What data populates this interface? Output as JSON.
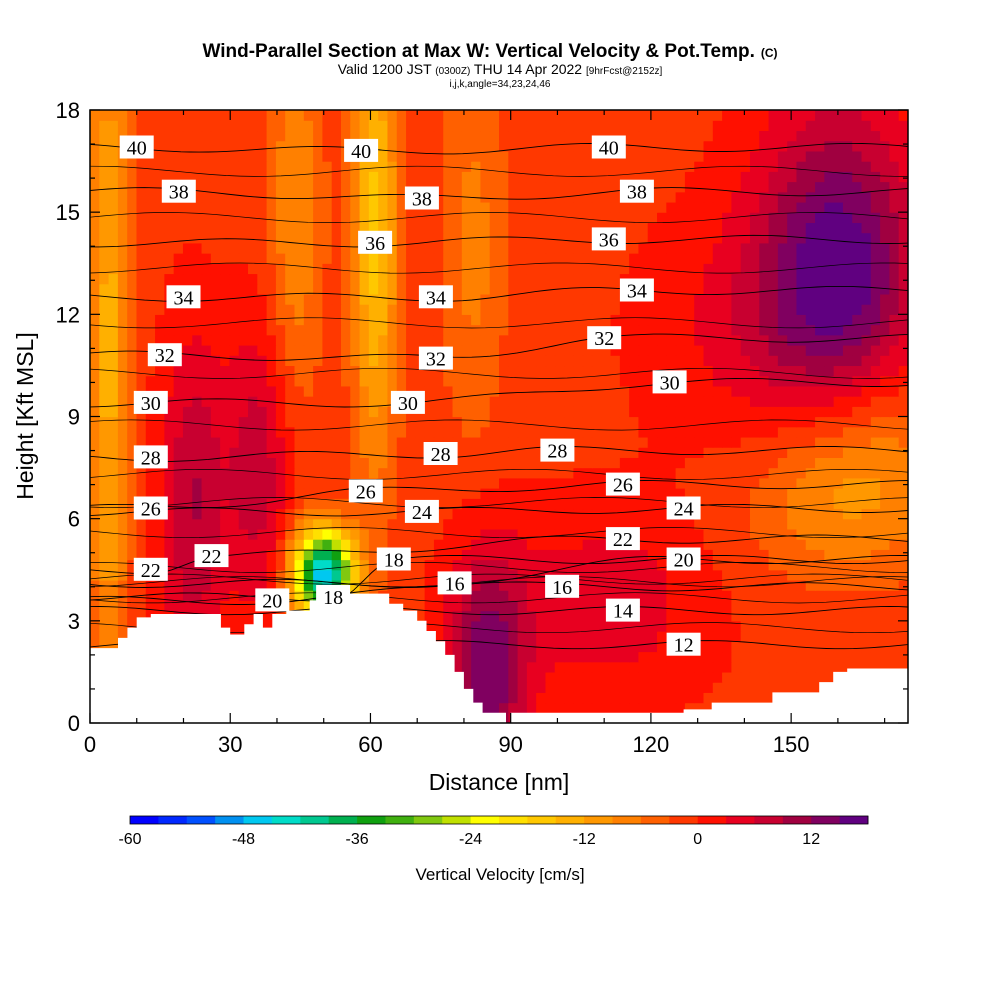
{
  "chart_data": {
    "type": "heatmap",
    "title": "Wind-Parallel Section at Max W: Vertical Velocity & Pot.Temp.",
    "title_mark": "(C)",
    "subtitle": {
      "valid": "Valid 1200 JST",
      "zulu": "(0300Z)",
      "date": "THU 14 Apr 2022",
      "forecast": "[9hrFcst@2152z]"
    },
    "info_line": "i,j,k,angle=34,23,24,46",
    "xlabel": "Distance [nm]",
    "ylabel": "Height [Kft MSL]",
    "xlim": [
      0,
      175
    ],
    "ylim": [
      0,
      18
    ],
    "x_ticks": [
      0,
      30,
      60,
      90,
      120,
      150
    ],
    "y_ticks": [
      0,
      3,
      6,
      9,
      12,
      15,
      18
    ],
    "colorbar": {
      "label": "Vertical Velocity [cm/s]",
      "tick_labels": [
        -60,
        -48,
        -36,
        -24,
        -12,
        0,
        12
      ],
      "levels": [
        -60,
        -57,
        -54,
        -51,
        -48,
        -45,
        -42,
        -39,
        -36,
        -33,
        -30,
        -27,
        -24,
        -21,
        -18,
        -15,
        -12,
        -9,
        -6,
        -3,
        0,
        3,
        6,
        9,
        12,
        15,
        18
      ],
      "colors": [
        "#0000ff",
        "#0028ff",
        "#0050ff",
        "#0090f0",
        "#00c8f0",
        "#00dcc8",
        "#00c890",
        "#00b050",
        "#10a010",
        "#40b010",
        "#80c810",
        "#c0e000",
        "#ffff00",
        "#ffe000",
        "#ffc800",
        "#ffb000",
        "#ff9800",
        "#ff8000",
        "#ff6000",
        "#ff3800",
        "#ff1000",
        "#e80020",
        "#c80030",
        "#a00040",
        "#800060",
        "#600080"
      ]
    },
    "pot_temp_contour_labels": [
      {
        "label": "40",
        "x": 10,
        "y": 16.9
      },
      {
        "label": "40",
        "x": 58,
        "y": 16.8
      },
      {
        "label": "40",
        "x": 111,
        "y": 16.9
      },
      {
        "label": "38",
        "x": 19,
        "y": 15.6
      },
      {
        "label": "38",
        "x": 71,
        "y": 15.4
      },
      {
        "label": "38",
        "x": 117,
        "y": 15.6
      },
      {
        "label": "36",
        "x": 61,
        "y": 14.1
      },
      {
        "label": "36",
        "x": 111,
        "y": 14.2
      },
      {
        "label": "34",
        "x": 20,
        "y": 12.5
      },
      {
        "label": "34",
        "x": 74,
        "y": 12.5
      },
      {
        "label": "34",
        "x": 117,
        "y": 12.7
      },
      {
        "label": "32",
        "x": 16,
        "y": 10.8
      },
      {
        "label": "32",
        "x": 74,
        "y": 10.7
      },
      {
        "label": "32",
        "x": 110,
        "y": 11.3
      },
      {
        "label": "30",
        "x": 13,
        "y": 9.4
      },
      {
        "label": "30",
        "x": 68,
        "y": 9.4
      },
      {
        "label": "30",
        "x": 124,
        "y": 10.0
      },
      {
        "label": "28",
        "x": 13,
        "y": 7.8
      },
      {
        "label": "28",
        "x": 75,
        "y": 7.9
      },
      {
        "label": "28",
        "x": 100,
        "y": 8.0
      },
      {
        "label": "26",
        "x": 13,
        "y": 6.3
      },
      {
        "label": "26",
        "x": 59,
        "y": 6.8
      },
      {
        "label": "26",
        "x": 114,
        "y": 7.0
      },
      {
        "label": "24",
        "x": 71,
        "y": 6.2
      },
      {
        "label": "24",
        "x": 127,
        "y": 6.3
      },
      {
        "label": "22",
        "x": 13,
        "y": 4.5
      },
      {
        "label": "22",
        "x": 26,
        "y": 4.9
      },
      {
        "label": "22",
        "x": 114,
        "y": 5.4
      },
      {
        "label": "20",
        "x": 127,
        "y": 4.8
      },
      {
        "label": "20",
        "x": 39,
        "y": 3.6
      },
      {
        "label": "18",
        "x": 52,
        "y": 3.7
      },
      {
        "label": "18",
        "x": 65,
        "y": 4.8
      },
      {
        "label": "16",
        "x": 78,
        "y": 4.1
      },
      {
        "label": "16",
        "x": 101,
        "y": 4.0
      },
      {
        "label": "14",
        "x": 114,
        "y": 3.3
      },
      {
        "label": "12",
        "x": 127,
        "y": 2.3
      }
    ],
    "terrain": [
      [
        0,
        2.2
      ],
      [
        6,
        2.2
      ],
      [
        6,
        2.5
      ],
      [
        8,
        2.5
      ],
      [
        8,
        2.8
      ],
      [
        10,
        2.8
      ],
      [
        10,
        3.1
      ],
      [
        13,
        3.1
      ],
      [
        13,
        3.2
      ],
      [
        28,
        3.2
      ],
      [
        28,
        2.8
      ],
      [
        30,
        2.8
      ],
      [
        30,
        2.6
      ],
      [
        33,
        2.6
      ],
      [
        33,
        2.9
      ],
      [
        35,
        2.9
      ],
      [
        35,
        3.2
      ],
      [
        37,
        3.2
      ],
      [
        37,
        2.8
      ],
      [
        39,
        2.8
      ],
      [
        39,
        3.2
      ],
      [
        42,
        3.2
      ],
      [
        42,
        3.3
      ],
      [
        47,
        3.3
      ],
      [
        47,
        3.6
      ],
      [
        53,
        3.6
      ],
      [
        53,
        3.8
      ],
      [
        64,
        3.8
      ],
      [
        64,
        3.5
      ],
      [
        67,
        3.5
      ],
      [
        67,
        3.3
      ],
      [
        70,
        3.3
      ],
      [
        70,
        3.0
      ],
      [
        72,
        3.0
      ],
      [
        72,
        2.7
      ],
      [
        74,
        2.7
      ],
      [
        74,
        2.4
      ],
      [
        76,
        2.4
      ],
      [
        76,
        2.0
      ],
      [
        78,
        2.0
      ],
      [
        78,
        1.5
      ],
      [
        80,
        1.5
      ],
      [
        80,
        1.0
      ],
      [
        82,
        1.0
      ],
      [
        82,
        0.6
      ],
      [
        84,
        0.6
      ],
      [
        84,
        0.3
      ],
      [
        89,
        0.3
      ],
      [
        89,
        0.0
      ],
      [
        90,
        0.0
      ],
      [
        90,
        0.3
      ],
      [
        127,
        0.3
      ],
      [
        127,
        0.4
      ],
      [
        133,
        0.4
      ],
      [
        133,
        0.6
      ],
      [
        146,
        0.6
      ],
      [
        146,
        0.9
      ],
      [
        156,
        0.9
      ],
      [
        156,
        1.2
      ],
      [
        159,
        1.2
      ],
      [
        159,
        1.5
      ],
      [
        162,
        1.5
      ],
      [
        162,
        1.6
      ],
      [
        175,
        1.6
      ],
      [
        175,
        0
      ],
      [
        0,
        0
      ]
    ],
    "vertical_velocity_features": [
      {
        "name": "upper-updraft-east",
        "x": 160,
        "y": 13.5,
        "sx": 12,
        "sy": 3.5,
        "value": 16
      },
      {
        "name": "updraft-arc-east",
        "x": 150,
        "y": 11.5,
        "sx": 20,
        "sy": 2.5,
        "value": 6
      },
      {
        "name": "downdraft-east-midlevel",
        "x": 165,
        "y": 8.5,
        "sx": 14,
        "sy": 2.0,
        "value": -9
      },
      {
        "name": "downdraft-east-lower",
        "x": 160,
        "y": 6.2,
        "sx": 14,
        "sy": 1.6,
        "value": -6
      },
      {
        "name": "updraft-low-east",
        "x": 110,
        "y": 3.5,
        "sx": 16,
        "sy": 2.0,
        "value": 6
      },
      {
        "name": "updraft-lee",
        "x": 85,
        "y": 1.5,
        "sx": 6,
        "sy": 2.5,
        "value": 15
      },
      {
        "name": "updraft-west-column",
        "x": 22,
        "y": 6.5,
        "sx": 5,
        "sy": 3.5,
        "value": 10
      },
      {
        "name": "updraft-ridge",
        "x": 36,
        "y": 7.5,
        "sx": 5,
        "sy": 3.0,
        "value": 9
      },
      {
        "name": "strong-downdraft-lee-slope",
        "x": 50,
        "y": 4.4,
        "sx": 4.5,
        "sy": 0.9,
        "value": -46
      },
      {
        "name": "downdraft-column-60",
        "x": 61,
        "y": 14.5,
        "sx": 3.5,
        "sy": 5,
        "value": -15
      },
      {
        "name": "downdraft-column-4",
        "x": 4,
        "y": 11,
        "sx": 3.0,
        "sy": 8,
        "value": -12
      },
      {
        "name": "downdraft-column-82",
        "x": 82,
        "y": 14,
        "sx": 5,
        "sy": 4,
        "value": -6
      },
      {
        "name": "downdraft-column-44",
        "x": 44,
        "y": 15,
        "sx": 4,
        "sy": 4,
        "value": -8
      }
    ]
  }
}
